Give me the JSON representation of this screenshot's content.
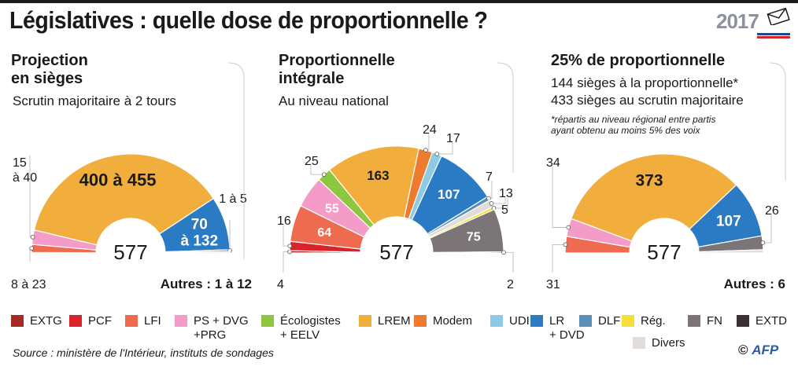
{
  "title": "Législatives : quelle dose de proportionnelle ?",
  "logo": {
    "year": "2017"
  },
  "panels": {
    "p1": {
      "title_l1": "Projection",
      "title_l2": "en sièges",
      "subtitle": "Scrutin majoritaire à 2 tours"
    },
    "p2": {
      "title_l1": "Proportionnelle",
      "title_l2": "intégrale",
      "subtitle": "Au niveau national"
    },
    "p3": {
      "title_l1": "25% de proportionnelle",
      "line1": "144 sièges à la proportionnelle*",
      "line2": "433 sièges au scrutin majoritaire",
      "note1": "*répartis au niveau régional entre partis",
      "note2": "ayant obtenu au moins 5% des voix"
    }
  },
  "colors": {
    "EXTG": "#a52a25",
    "PCF": "#d9232a",
    "LFI": "#ee6b4f",
    "PS": "#f49bc7",
    "ECO": "#8dc63f",
    "LREM": "#f2ae3d",
    "MODEM": "#ee7a2e",
    "UDI": "#8ecae6",
    "LR": "#2b7bc4",
    "DLF": "#5b8fb9",
    "REG": "#f5e03b",
    "DIVERS": "#e2ddd8",
    "FN": "#7c7577",
    "EXTD": "#3b3131"
  },
  "chart_data": [
    {
      "type": "pie",
      "title": "Projection en sièges",
      "subtitle": "Scrutin majoritaire à 2 tours",
      "total": "577",
      "segments": [
        {
          "party": "EXTG",
          "color": "EXTG",
          "value": 1
        },
        {
          "party": "LFI",
          "color": "LFI",
          "value": 15,
          "label": "8 à 23"
        },
        {
          "party": "PS",
          "color": "PS",
          "value": 27,
          "label": "15 à 40"
        },
        {
          "party": "LREM",
          "color": "LREM",
          "value": 427,
          "label": "400 à 455"
        },
        {
          "party": "LR",
          "color": "LR",
          "value": 101,
          "label": "70 à 132"
        },
        {
          "party": "FN",
          "color": "FN",
          "value": 3,
          "label": "1 à 5"
        },
        {
          "party": "Divers",
          "color": "DIVERS",
          "value": 3
        }
      ],
      "others_label": "Autres : 1 à 12"
    },
    {
      "type": "pie",
      "title": "Proportionnelle intégrale",
      "subtitle": "Au niveau national",
      "total": "577",
      "segments": [
        {
          "party": "EXTG",
          "color": "EXTG",
          "value": 4,
          "label": "4"
        },
        {
          "party": "PCF",
          "color": "PCF",
          "value": 16,
          "label": "16"
        },
        {
          "party": "LFI",
          "color": "LFI",
          "value": 64,
          "label": "64"
        },
        {
          "party": "PS + DVG + PRG",
          "color": "PS",
          "value": 55,
          "label": "55"
        },
        {
          "party": "Écologistes + EELV",
          "color": "ECO",
          "value": 25,
          "label": "25"
        },
        {
          "party": "LREM",
          "color": "LREM",
          "value": 163,
          "label": "163"
        },
        {
          "party": "Modem",
          "color": "MODEM",
          "value": 24,
          "label": "24"
        },
        {
          "party": "UDI",
          "color": "UDI",
          "value": 17,
          "label": "17"
        },
        {
          "party": "LR + DVD",
          "color": "LR",
          "value": 107,
          "label": "107"
        },
        {
          "party": "DLF",
          "color": "DLF",
          "value": 7,
          "label": "7"
        },
        {
          "party": "Divers",
          "color": "DIVERS",
          "value": 13,
          "label": "13"
        },
        {
          "party": "Rég.",
          "color": "REG",
          "value": 5,
          "label": "5"
        },
        {
          "party": "FN",
          "color": "FN",
          "value": 75,
          "label": "75"
        },
        {
          "party": "EXTD",
          "color": "EXTD",
          "value": 2,
          "label": "2"
        }
      ]
    },
    {
      "type": "pie",
      "title": "25% de proportionnelle",
      "subtitle": "144 sièges à la proportionnelle* / 433 sièges au scrutin majoritaire",
      "total": "577",
      "segments": [
        {
          "party": "LFI",
          "color": "LFI",
          "value": 31,
          "label": "31"
        },
        {
          "party": "PS + DVG + PRG",
          "color": "PS",
          "value": 34,
          "label": "34"
        },
        {
          "party": "LREM",
          "color": "LREM",
          "value": 373,
          "label": "373"
        },
        {
          "party": "LR + DVD",
          "color": "LR",
          "value": 107,
          "label": "107"
        },
        {
          "party": "FN",
          "color": "FN",
          "value": 26,
          "label": "26"
        },
        {
          "party": "Divers",
          "color": "DIVERS",
          "value": 6
        }
      ],
      "others_label": "Autres : 6"
    }
  ],
  "legend": [
    {
      "key": "EXTG",
      "label": "EXTG"
    },
    {
      "key": "PCF",
      "label": "PCF"
    },
    {
      "key": "LFI",
      "label": "LFI"
    },
    {
      "key": "PS",
      "label": "PS + DVG",
      "label2": "+PRG"
    },
    {
      "key": "ECO",
      "label": "Écologistes",
      "label2": "+ EELV"
    },
    {
      "key": "LREM",
      "label": "LREM"
    },
    {
      "key": "MODEM",
      "label": "Modem"
    },
    {
      "key": "UDI",
      "label": "UDI"
    },
    {
      "key": "LR",
      "label": "LR",
      "label2": "+ DVD"
    },
    {
      "key": "DLF",
      "label": "DLF"
    },
    {
      "key": "REG",
      "label": "Rég."
    },
    {
      "key": "FN",
      "label": "FN"
    },
    {
      "key": "EXTD",
      "label": "EXTD"
    },
    {
      "key": "DIVERS",
      "label": "Divers"
    }
  ],
  "source": "Source : ministère de l'Intérieur, instituts de sondages",
  "credit": {
    "copyright": "©",
    "agency": "AFP"
  }
}
